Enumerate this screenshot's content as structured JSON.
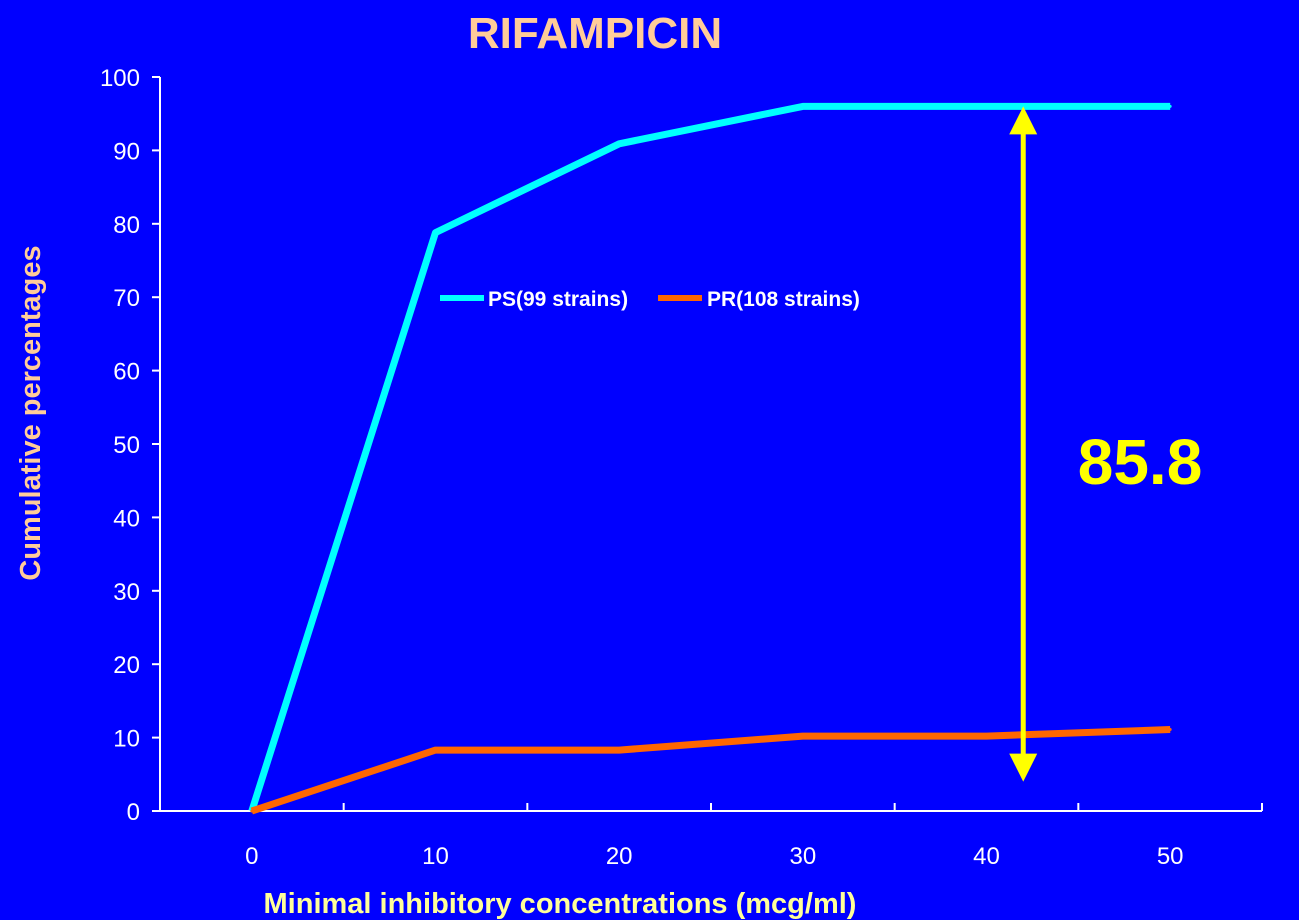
{
  "chart_data": {
    "type": "line",
    "title": "RIFAMPICIN",
    "xlabel": "Minimal inhibitory concentrations (mcg/ml)",
    "ylabel": "Cumulative percentages",
    "x": [
      0,
      10,
      20,
      30,
      40,
      50
    ],
    "xlim": [
      -5,
      55
    ],
    "ylim": [
      0,
      100
    ],
    "x_ticks": [
      0,
      10,
      20,
      30,
      40,
      50
    ],
    "y_ticks": [
      0,
      10,
      20,
      30,
      40,
      50,
      60,
      70,
      80,
      90,
      100
    ],
    "grid": false,
    "legend_position": "center-top",
    "series": [
      {
        "name": "PS(99 strains)",
        "values": [
          0,
          78.8,
          90.9,
          96,
          96,
          96
        ],
        "color": "#00FFFF"
      },
      {
        "name": "PR(108 strains)",
        "values": [
          0,
          8.3,
          8.3,
          10.2,
          10.2,
          11.1
        ],
        "color": "#FF6600"
      }
    ],
    "annotation": {
      "text": "85.8",
      "x": 42,
      "y_from": 96,
      "y_to": 4,
      "color": "#FFFF00"
    },
    "colors": {
      "background": "#0000FF",
      "axis": "#FFFFFF"
    }
  }
}
